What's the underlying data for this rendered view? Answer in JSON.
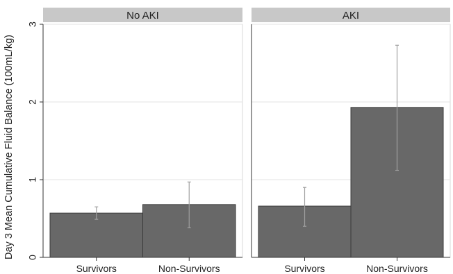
{
  "chart_data": {
    "type": "bar",
    "ylabel": "Day 3 Mean Cumulative Fluid Balance (100mL/kg)",
    "ylim": [
      0,
      3
    ],
    "yticks": [
      0,
      1,
      2,
      3
    ],
    "grid": true,
    "categories": [
      "Survivors",
      "Non-Survivors"
    ],
    "panels": [
      {
        "title": "No AKI",
        "values": [
          0.57,
          0.68
        ],
        "error_low": [
          0.49,
          0.38
        ],
        "error_high": [
          0.65,
          0.97
        ]
      },
      {
        "title": "AKI",
        "values": [
          0.66,
          1.93
        ],
        "error_low": [
          0.4,
          1.12
        ],
        "error_high": [
          0.9,
          2.73
        ]
      }
    ],
    "colors": {
      "bar_fill": "#686868",
      "bar_stroke": "#3a3a3a",
      "error_bar": "#a0a0a0",
      "header_fill": "#c8c8c8",
      "plot_background": "#ffffff",
      "page_background": "#ffffff",
      "frame": "#d9d9d9"
    }
  }
}
